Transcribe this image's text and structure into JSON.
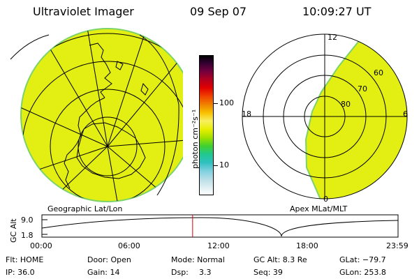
{
  "header": {
    "title": "Ultraviolet Imager",
    "date": "09 Sep 07",
    "time": "10:09:27 UT"
  },
  "left_map": {
    "label": "Geographic Lat/Lon"
  },
  "right_map": {
    "label": "Apex MLat/MLT",
    "mlt_labels": {
      "top": "12",
      "left": "18",
      "right": "6",
      "bottom": "0"
    },
    "mlat_labels": [
      "60",
      "70",
      "80"
    ]
  },
  "colorbar": {
    "label": "photon cm⁻²s⁻¹",
    "ticks": [
      "100",
      "10"
    ]
  },
  "altitude_plot": {
    "ylabel": "GC Alt",
    "yticks": [
      "9.0",
      "1.8"
    ],
    "xticks": [
      "00:00",
      "06:00",
      "12:00",
      "18:00",
      "23:59"
    ],
    "current_time_fraction": 0.4232
  },
  "footer": {
    "flt": "Flt: HOME",
    "ip": "IP: 36.0",
    "door": "Door: Open",
    "gain": "Gain: 14",
    "mode": "Mode: Normal",
    "dsp_label": "Dsp:",
    "dsp_value": "3.3",
    "gcalt": "GC Alt: 8.3 Re",
    "seq": "Seq: 39",
    "glat": "GLat: −79.7",
    "glon": "GLon: 253.8"
  },
  "colors": {
    "emission": "#e3ee13",
    "emission_edge": "#7dd36a",
    "marker": "#d00000"
  }
}
